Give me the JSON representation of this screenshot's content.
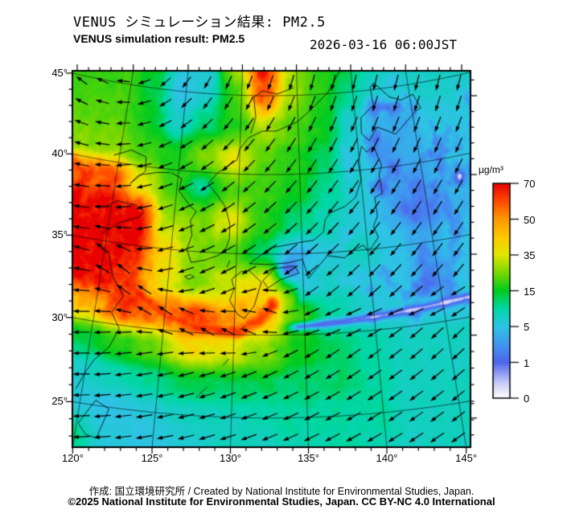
{
  "header": {
    "title_jp": "VENUS シミュレーション結果: PM2.5",
    "title_en": "VENUS simulation result: PM2.5",
    "datetime": "2026-03-16 06:00JST"
  },
  "footer": {
    "credit": "作成: 国立環境研究所 / Created by National Institute for Environmental Studies, Japan.",
    "license": "©2025 National Institute for Environmental Studies, Japan. CC BY-NC 4.0 International"
  },
  "colorbar": {
    "unit": "µg/m³",
    "tick_labels": [
      "70",
      "50",
      "35",
      "15",
      "5",
      "1",
      "0"
    ],
    "anchor_values": [
      0,
      1,
      5,
      15,
      35,
      50,
      70
    ],
    "stops": [
      [
        0.0,
        "#ffffff"
      ],
      [
        0.07,
        "#c8cdf8"
      ],
      [
        0.1667,
        "#4e66ec"
      ],
      [
        0.25,
        "#3f97f0"
      ],
      [
        0.3333,
        "#2fc3e6"
      ],
      [
        0.4167,
        "#00d7a4"
      ],
      [
        0.5,
        "#00cb20"
      ],
      [
        0.5833,
        "#77d800"
      ],
      [
        0.6667,
        "#e2e600"
      ],
      [
        0.75,
        "#ffc800"
      ],
      [
        0.8333,
        "#ff9800"
      ],
      [
        0.9167,
        "#ff4a00"
      ],
      [
        1.0,
        "#e80000"
      ]
    ]
  },
  "axes": {
    "lon_major": [
      {
        "value": 120,
        "label": "120°"
      },
      {
        "value": 125,
        "label": "125°"
      },
      {
        "value": 130,
        "label": "130°"
      },
      {
        "value": 135,
        "label": "135°"
      },
      {
        "value": 140,
        "label": "140°"
      },
      {
        "value": 145,
        "label": "145°"
      }
    ],
    "lat_major": [
      {
        "value": 45,
        "label": "45°"
      },
      {
        "value": 40,
        "label": "40°"
      },
      {
        "value": 35,
        "label": "35°"
      },
      {
        "value": 30,
        "label": "30°"
      },
      {
        "value": 25,
        "label": "25°"
      }
    ],
    "minor_step": 1,
    "major_step": 5
  },
  "chart_data": {
    "type": "heatmap",
    "title": "VENUS simulation result: PM2.5",
    "unit": "µg/m³",
    "projection": {
      "type": "lambert_conformal_conic",
      "center_lon": 132.5,
      "std_parallel": 47
    },
    "grid_lons": [
      119.5,
      122,
      124.5,
      127,
      129.5,
      132,
      134.5,
      137,
      139.5,
      142,
      144.5,
      147
    ],
    "grid_lats": [
      47,
      45,
      43,
      41,
      39,
      37,
      35,
      33,
      31,
      29,
      27,
      25,
      23
    ],
    "values": [
      [
        20,
        16,
        6,
        6,
        30,
        68,
        30,
        18,
        14,
        10,
        8,
        9
      ],
      [
        20,
        14,
        5,
        7,
        20,
        58,
        28,
        18,
        11,
        7,
        7,
        8
      ],
      [
        22,
        16,
        7,
        12,
        18,
        30,
        22,
        16,
        7,
        4,
        4,
        6
      ],
      [
        26,
        20,
        16,
        25,
        35,
        22,
        18,
        13,
        6,
        3,
        4,
        5
      ],
      [
        60,
        35,
        20,
        10,
        22,
        20,
        16,
        11,
        7,
        4,
        3,
        5
      ],
      [
        70,
        70,
        28,
        25,
        35,
        18,
        12,
        9,
        6,
        4,
        2,
        4
      ],
      [
        70,
        70,
        40,
        26,
        22,
        12,
        4,
        6,
        8,
        5,
        4,
        5
      ],
      [
        70,
        62,
        38,
        26,
        33,
        40,
        6,
        8,
        6,
        5,
        3,
        5
      ],
      [
        45,
        62,
        55,
        62,
        52,
        45,
        20,
        10,
        8,
        6,
        6,
        6
      ],
      [
        14,
        18,
        24,
        40,
        35,
        26,
        16,
        13,
        10,
        8,
        8,
        8
      ],
      [
        7,
        9,
        11,
        13,
        13,
        13,
        12,
        12,
        10,
        8,
        8,
        8
      ],
      [
        6,
        5,
        6,
        8,
        8,
        9,
        10,
        10,
        10,
        8,
        8,
        8
      ],
      [
        12,
        6,
        5,
        6,
        8,
        8,
        9,
        10,
        9,
        8,
        8,
        8
      ]
    ],
    "plume_arc": [
      [
        120.5,
        34.2
      ],
      [
        122.5,
        32.3
      ],
      [
        125.0,
        31.0
      ],
      [
        127.6,
        30.3
      ],
      [
        130.2,
        30.2
      ],
      [
        131.8,
        30.9
      ],
      [
        132.7,
        31.9
      ]
    ],
    "clean_pocket": {
      "lon": 133.8,
      "lat": 34.05,
      "radius": 0.55,
      "depth": 0.82
    },
    "front": {
      "lon_start": 133.2,
      "base_lat": 30.45,
      "slope": 0.06,
      "width": 0.3
    },
    "wind": {
      "vortex_center": [
        120,
        48
      ],
      "sense": "clockwise",
      "uniform": [
        -0.18,
        -0.04
      ],
      "jet_amp": [
        0.28,
        1.25
      ],
      "jet_sigma": 1.5,
      "front_westerly": 1.15
    },
    "coastlines": [
      [
        [
          119.5,
          40.4
        ],
        [
          120.9,
          40.9
        ],
        [
          122.2,
          40.6
        ],
        [
          122.3,
          39.7
        ],
        [
          121.2,
          38.8
        ],
        [
          121.8,
          39.4
        ],
        [
          123.2,
          39.7
        ],
        [
          124.3,
          39.8
        ]
      ],
      [
        [
          119.5,
          37.1
        ],
        [
          120.4,
          37.6
        ],
        [
          121.9,
          37.5
        ],
        [
          122.6,
          37.2
        ],
        [
          122.3,
          36.8
        ],
        [
          120.9,
          36.3
        ],
        [
          119.8,
          35.6
        ],
        [
          119.5,
          35.3
        ]
      ],
      [
        [
          119.6,
          34.6
        ],
        [
          120.4,
          34.2
        ],
        [
          120.9,
          32.9
        ],
        [
          121.9,
          31.8
        ],
        [
          121.2,
          30.7
        ],
        [
          121.9,
          29.8
        ],
        [
          121.4,
          28.6
        ],
        [
          120.5,
          27.7
        ],
        [
          120.0,
          26.8
        ],
        [
          119.6,
          25.8
        ]
      ],
      [
        [
          124.4,
          39.8
        ],
        [
          125.3,
          39.5
        ],
        [
          125.2,
          38.7
        ],
        [
          126.2,
          37.8
        ],
        [
          126.7,
          37.5
        ],
        [
          126.3,
          36.9
        ],
        [
          126.5,
          36.0
        ],
        [
          126.2,
          35.1
        ],
        [
          126.6,
          34.3
        ],
        [
          127.6,
          34.5
        ],
        [
          128.5,
          34.8
        ],
        [
          129.1,
          35.1
        ],
        [
          129.4,
          35.9
        ],
        [
          129.4,
          36.8
        ],
        [
          129.0,
          37.9
        ],
        [
          128.2,
          38.7
        ],
        [
          127.5,
          39.3
        ],
        [
          128.2,
          40.0
        ],
        [
          129.8,
          40.9
        ],
        [
          130.0,
          41.6
        ],
        [
          130.7,
          42.3
        ]
      ],
      [
        [
          126.2,
          33.4
        ],
        [
          126.6,
          33.55
        ],
        [
          126.9,
          33.4
        ],
        [
          126.5,
          33.25
        ],
        [
          126.2,
          33.4
        ]
      ],
      [
        [
          129.3,
          34.1
        ],
        [
          129.5,
          34.55
        ]
      ],
      [
        [
          130.2,
          31.25
        ],
        [
          129.6,
          32.1
        ],
        [
          129.9,
          32.8
        ],
        [
          129.7,
          33.4
        ],
        [
          130.4,
          33.9
        ],
        [
          131.0,
          33.95
        ],
        [
          131.9,
          33.25
        ],
        [
          131.4,
          31.8
        ],
        [
          130.7,
          31.0
        ],
        [
          130.2,
          31.25
        ]
      ],
      [
        [
          132.0,
          33.35
        ],
        [
          132.9,
          34.1
        ],
        [
          134.4,
          34.25
        ],
        [
          134.7,
          33.8
        ],
        [
          133.3,
          33.4
        ],
        [
          132.4,
          32.9
        ],
        [
          132.0,
          33.35
        ]
      ],
      [
        [
          131.0,
          34.4
        ],
        [
          132.4,
          34.35
        ],
        [
          133.9,
          34.45
        ],
        [
          135.0,
          34.65
        ],
        [
          135.4,
          33.45
        ],
        [
          136.1,
          34.1
        ],
        [
          136.9,
          34.8
        ],
        [
          138.2,
          34.6
        ],
        [
          138.8,
          35.0
        ],
        [
          139.7,
          35.3
        ],
        [
          140.0,
          34.9
        ],
        [
          140.4,
          35.2
        ],
        [
          140.9,
          35.7
        ],
        [
          140.6,
          36.4
        ],
        [
          141.0,
          37.0
        ],
        [
          140.95,
          38.2
        ],
        [
          141.6,
          38.4
        ],
        [
          141.5,
          39.6
        ],
        [
          141.8,
          40.2
        ],
        [
          141.3,
          41.4
        ],
        [
          140.7,
          41.1
        ],
        [
          140.3,
          41.5
        ],
        [
          139.9,
          40.5
        ],
        [
          140.0,
          39.4
        ],
        [
          139.4,
          38.3
        ],
        [
          138.5,
          37.8
        ],
        [
          137.4,
          37.5
        ],
        [
          136.9,
          37.1
        ],
        [
          136.7,
          36.3
        ],
        [
          135.9,
          35.8
        ],
        [
          135.2,
          35.75
        ],
        [
          133.4,
          35.5
        ],
        [
          132.6,
          35.4
        ],
        [
          131.4,
          34.65
        ],
        [
          131.0,
          34.4
        ]
      ],
      [
        [
          140.4,
          42.3
        ],
        [
          141.0,
          41.8
        ],
        [
          141.8,
          42.6
        ],
        [
          142.6,
          42.3
        ],
        [
          143.3,
          42.0
        ],
        [
          144.8,
          42.95
        ],
        [
          145.4,
          43.3
        ],
        [
          145.8,
          43.4
        ],
        [
          145.3,
          44.35
        ],
        [
          144.2,
          44.1
        ],
        [
          143.2,
          44.4
        ],
        [
          142.0,
          45.4
        ],
        [
          141.6,
          45.2
        ],
        [
          141.7,
          44.0
        ],
        [
          140.5,
          43.3
        ],
        [
          140.4,
          42.3
        ]
      ],
      [
        [
          130.7,
          42.3
        ],
        [
          131.9,
          42.75
        ],
        [
          133.1,
          42.75
        ],
        [
          134.9,
          43.3
        ],
        [
          136.1,
          44.0
        ],
        [
          137.8,
          45.1
        ],
        [
          139.0,
          46.4
        ]
      ],
      [
        [
          130.9,
          42.6
        ],
        [
          131.3,
          43.6
        ],
        [
          131.1,
          44.9
        ],
        [
          131.9,
          45.3
        ],
        [
          133.2,
          45.1
        ],
        [
          134.7,
          45.5
        ]
      ],
      [
        [
          141.8,
          46.45
        ],
        [
          142.5,
          46.1
        ],
        [
          143.1,
          46.45
        ]
      ],
      [
        [
          127.6,
          26.1
        ],
        [
          128.3,
          26.75
        ]
      ],
      [
        [
          129.3,
          28.1
        ],
        [
          129.7,
          28.5
        ]
      ],
      [
        [
          130.4,
          30.3
        ],
        [
          130.8,
          30.55
        ]
      ],
      [
        [
          121.0,
          25.3
        ],
        [
          121.95,
          24.9
        ],
        [
          121.4,
          23.1
        ],
        [
          120.7,
          23.2
        ],
        [
          120.1,
          23.8
        ],
        [
          121.0,
          25.3
        ]
      ]
    ]
  }
}
